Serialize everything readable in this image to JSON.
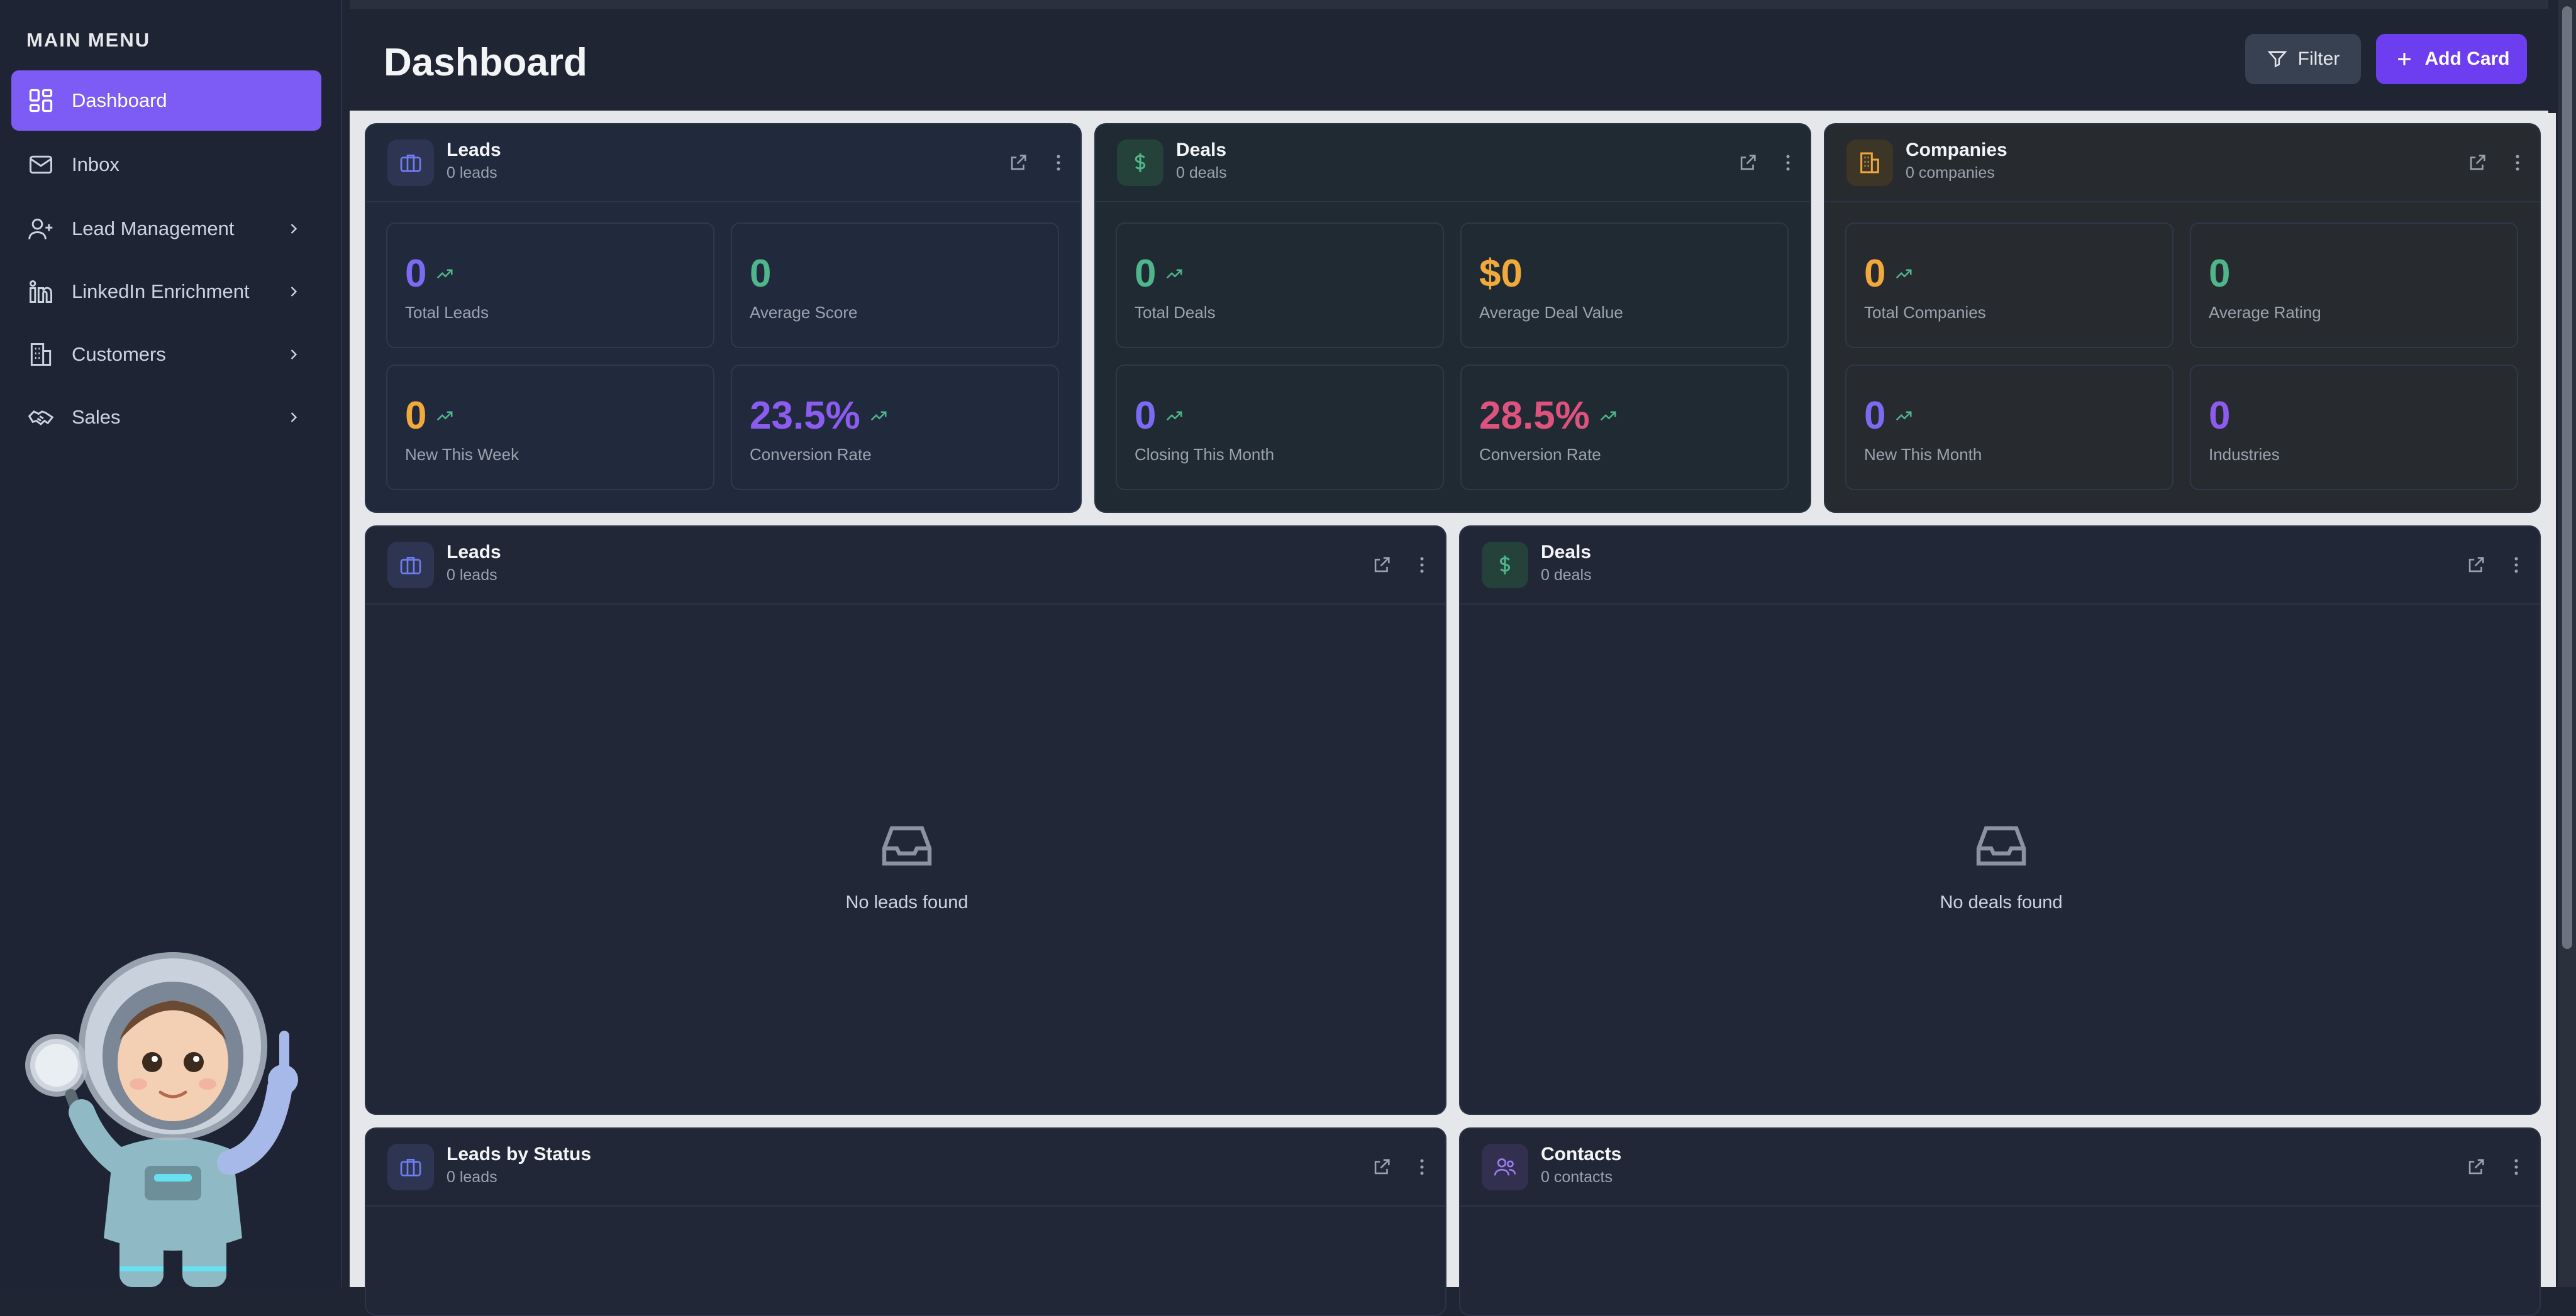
{
  "sidebar": {
    "title": "MAIN MENU",
    "items": [
      {
        "label": "Dashboard",
        "icon": "grid-icon",
        "active": true
      },
      {
        "label": "Inbox",
        "icon": "mail-icon"
      },
      {
        "label": "Lead Management",
        "icon": "user-plus-icon"
      },
      {
        "label": "LinkedIn Enrichment",
        "icon": "linkedin-icon"
      },
      {
        "label": "Customers",
        "icon": "building-icon"
      },
      {
        "label": "Sales",
        "icon": "handshake-icon"
      }
    ]
  },
  "header": {
    "title": "Dashboard",
    "filter_label": "Filter",
    "add_label": "Add Card"
  },
  "cards": {
    "leads_stats": {
      "title": "Leads",
      "subtitle": "0 leads",
      "stats": [
        {
          "value": "0",
          "label": "Total Leads"
        },
        {
          "value": "0",
          "label": "Average Score"
        },
        {
          "value": "0",
          "label": "New This Week"
        },
        {
          "value": "23.5%",
          "label": "Conversion Rate"
        }
      ]
    },
    "deals_stats": {
      "title": "Deals",
      "subtitle": "0 deals",
      "stats": [
        {
          "value": "0",
          "label": "Total Deals"
        },
        {
          "value": "$0",
          "label": "Average Deal Value"
        },
        {
          "value": "0",
          "label": "Closing This Month"
        },
        {
          "value": "28.5%",
          "label": "Conversion Rate"
        }
      ]
    },
    "companies_stats": {
      "title": "Companies",
      "subtitle": "0 companies",
      "stats": [
        {
          "value": "0",
          "label": "Total Companies"
        },
        {
          "value": "0",
          "label": "Average Rating"
        },
        {
          "value": "0",
          "label": "New This Month"
        },
        {
          "value": "0",
          "label": "Industries"
        }
      ]
    },
    "leads_list": {
      "title": "Leads",
      "subtitle": "0 leads",
      "empty": "No leads found"
    },
    "deals_list": {
      "title": "Deals",
      "subtitle": "0 deals",
      "empty": "No deals found"
    },
    "leads_by_status": {
      "title": "Leads by Status",
      "subtitle": "0 leads"
    },
    "contacts": {
      "title": "Contacts",
      "subtitle": "0 contacts"
    }
  },
  "colors": {
    "accent": "#7c5cf4",
    "purple": "#7c5cf4",
    "green": "#4fb58a",
    "orange": "#f0a93a",
    "pink": "#e0527e",
    "trend": "#4fb58a"
  }
}
